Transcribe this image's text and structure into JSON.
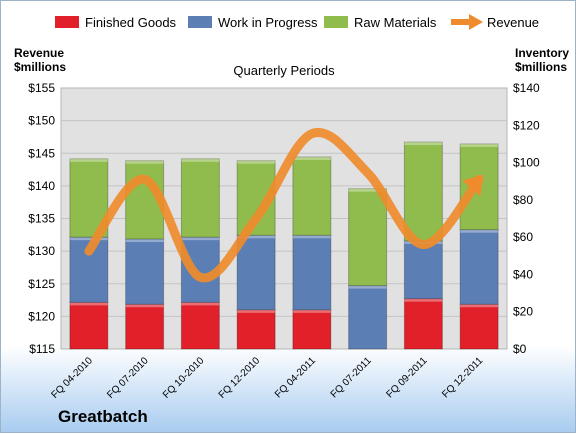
{
  "chart_data": {
    "type": "bar",
    "subtitle": "Quarterly Periods",
    "brand": "Greatbatch",
    "left_axis": {
      "title_line1": "Revenue",
      "title_line2": "$millions",
      "ylim": [
        115,
        155
      ],
      "ticks": [
        "$115",
        "$120",
        "$125",
        "$130",
        "$135",
        "$140",
        "$145",
        "$150",
        "$155"
      ]
    },
    "right_axis": {
      "title_line1": "Inventory",
      "title_line2": "$millions",
      "ylim": [
        0,
        140
      ],
      "ticks": [
        "$0",
        "$20",
        "$40",
        "$60",
        "$80",
        "$100",
        "$120",
        "$140"
      ]
    },
    "categories": [
      "FQ 04-2010",
      "FQ 07-2010",
      "FQ 10-2010",
      "FQ 12-2010",
      "FQ 04-2011",
      "FQ 07-2011",
      "FQ 09-2011",
      "FQ 12-2011"
    ],
    "series": [
      {
        "name": "Finished Goods",
        "axis": "right",
        "kind": "stacked-bar",
        "color": "#e2202a",
        "values": [
          25,
          24,
          25,
          21,
          21,
          0,
          27,
          24
        ]
      },
      {
        "name": "Work in Progress",
        "axis": "right",
        "kind": "stacked-bar",
        "color": "#5b7fb5",
        "values": [
          35,
          35,
          35,
          40,
          40,
          34,
          31,
          40
        ]
      },
      {
        "name": "Raw Materials",
        "axis": "right",
        "kind": "stacked-bar",
        "color": "#8fbc4c",
        "values": [
          42,
          42,
          42,
          40,
          42,
          52,
          53,
          46
        ]
      },
      {
        "name": "Revenue",
        "axis": "left",
        "kind": "line",
        "color": "#ef8b2c",
        "values": [
          130,
          141,
          126,
          135,
          148,
          142,
          131,
          141
        ]
      }
    ],
    "legend_position": "top",
    "grid": true
  }
}
